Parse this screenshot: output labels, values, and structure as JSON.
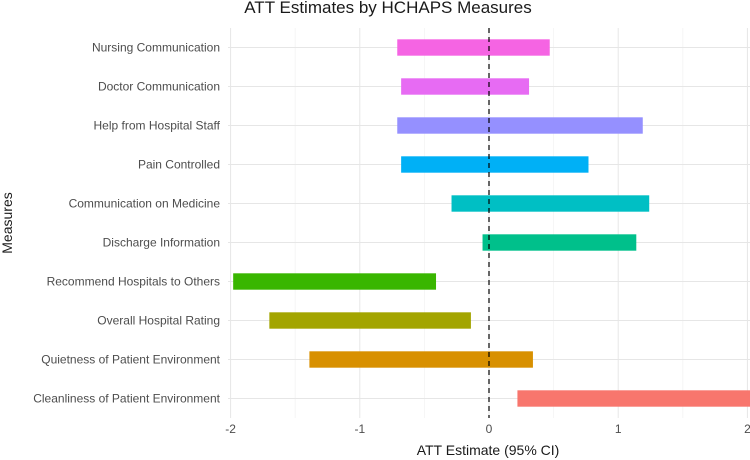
{
  "chart_data": {
    "type": "bar",
    "orientation": "horizontal",
    "title": "ATT Estimates by HCHAPS Measures",
    "xlabel": "ATT Estimate (95% CI)",
    "ylabel": "Measures",
    "xlim": [
      -2.02,
      2.02
    ],
    "xticks": [
      -2,
      -1,
      0,
      1,
      2
    ],
    "xtick_labels": [
      "-2",
      "-1",
      "0",
      "1",
      "2"
    ],
    "reference_line": {
      "x": 0,
      "style": "dashed"
    },
    "categories": [
      "Nursing Communication",
      "Doctor Communication",
      "Help from Hospital Staff",
      "Pain Controlled",
      "Communication on Medicine",
      "Discharge Information",
      "Recommend Hospitals to Others",
      "Overall Hospital Rating",
      "Quietness of Patient Environment",
      "Cleanliness of Patient Environment"
    ],
    "series": [
      {
        "name": "Nursing Communication",
        "low": -0.71,
        "high": 0.47,
        "color": "#F564E3"
      },
      {
        "name": "Doctor Communication",
        "low": -0.68,
        "high": 0.31,
        "color": "#E76BF3"
      },
      {
        "name": "Help from Hospital Staff",
        "low": -0.71,
        "high": 1.19,
        "color": "#9590FF"
      },
      {
        "name": "Pain Controlled",
        "low": -0.68,
        "high": 0.77,
        "color": "#00B0F6"
      },
      {
        "name": "Communication on Medicine",
        "low": -0.29,
        "high": 1.24,
        "color": "#00BFC4"
      },
      {
        "name": "Discharge Information",
        "low": -0.05,
        "high": 1.14,
        "color": "#00C08B"
      },
      {
        "name": "Recommend Hospitals to Others",
        "low": -1.98,
        "high": -0.41,
        "color": "#39B600"
      },
      {
        "name": "Overall Hospital Rating",
        "low": -1.7,
        "high": -0.14,
        "color": "#A3A500"
      },
      {
        "name": "Quietness of Patient Environment",
        "low": -1.39,
        "high": 0.34,
        "color": "#D89000"
      },
      {
        "name": "Cleanliness of Patient Environment",
        "low": 0.22,
        "high": 2.02,
        "color": "#F8766D"
      }
    ]
  }
}
